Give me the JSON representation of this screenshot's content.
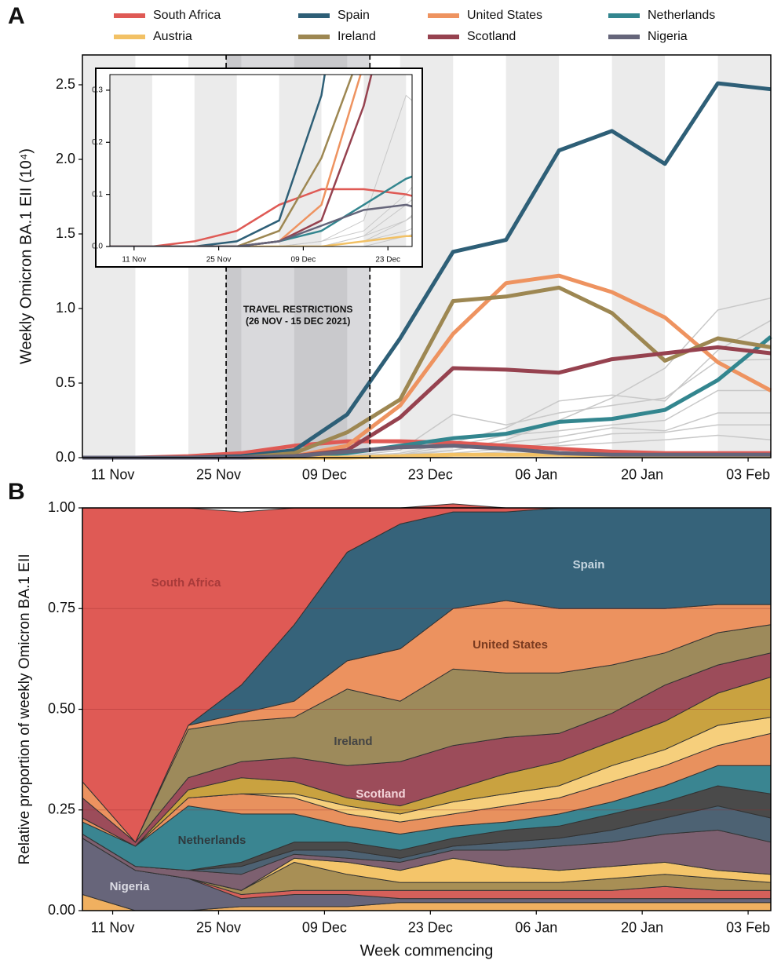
{
  "chart_data": [
    {
      "type": "line",
      "panel": "A",
      "x": [
        "07 Nov",
        "14 Nov",
        "21 Nov",
        "28 Nov",
        "05 Dec",
        "12 Dec",
        "19 Dec",
        "26 Dec",
        "02 Jan",
        "09 Jan",
        "16 Jan",
        "23 Jan",
        "30 Jan",
        "06 Feb"
      ],
      "xlim": [
        "07 Nov",
        "06 Feb"
      ],
      "xticks": [
        "11 Nov",
        "25 Nov",
        "09 Dec",
        "23 Dec",
        "06 Jan",
        "20 Jan",
        "03 Feb"
      ],
      "ylim": [
        0,
        2.7
      ],
      "yticks": [
        {
          "value": 0,
          "label": "0.0"
        },
        0.5,
        {
          "value": 1,
          "label": "1.0"
        },
        1.5,
        {
          "value": 2,
          "label": "2.0"
        },
        2.5
      ],
      "y_label": "Weekly Omicron BA.1 EII (10⁴)",
      "series": [
        {
          "name": "South Africa",
          "color": "#df5a55",
          "values": [
            0,
            0,
            0.01,
            0.03,
            0.08,
            0.11,
            0.11,
            0.1,
            0.08,
            0.06,
            0.04,
            0.03,
            0.03,
            0.03
          ]
        },
        {
          "name": "Spain",
          "color": "#2e5f77",
          "values": [
            0,
            0,
            0,
            0.01,
            0.05,
            0.29,
            0.8,
            1.38,
            1.46,
            2.06,
            2.19,
            1.97,
            2.51,
            2.47
          ]
        },
        {
          "name": "United States",
          "color": "#ee9360",
          "values": [
            0,
            0,
            0,
            0,
            0.01,
            0.08,
            0.35,
            0.83,
            1.17,
            1.22,
            1.11,
            0.94,
            0.64,
            0.45
          ]
        },
        {
          "name": "Netherlands",
          "color": "#33868f",
          "values": [
            0,
            0,
            0,
            0,
            0.01,
            0.03,
            0.08,
            0.13,
            0.16,
            0.24,
            0.26,
            0.32,
            0.52,
            0.81
          ]
        },
        {
          "name": "Austria",
          "color": "#f2c165",
          "values": [
            0,
            0,
            0,
            0,
            0,
            0,
            0.01,
            0.02,
            0.02,
            0.02,
            0.01,
            0.01,
            0.01,
            0.01
          ]
        },
        {
          "name": "Ireland",
          "color": "#9d8752",
          "values": [
            0,
            0,
            0,
            0,
            0.03,
            0.17,
            0.39,
            1.05,
            1.08,
            1.14,
            0.97,
            0.65,
            0.8,
            0.74
          ]
        },
        {
          "name": "Scotland",
          "color": "#96424f",
          "values": [
            0,
            0,
            0,
            0,
            0.01,
            0.05,
            0.27,
            0.6,
            0.59,
            0.57,
            0.66,
            0.7,
            0.74,
            0.7
          ]
        },
        {
          "name": "Nigeria",
          "color": "#65657a",
          "values": [
            0,
            0,
            0,
            0,
            0.01,
            0.04,
            0.07,
            0.08,
            0.06,
            0.03,
            0.02,
            0.02,
            0.02,
            0.02
          ]
        }
      ],
      "background_series": [
        {
          "color": "#c8c8c8",
          "values": [
            0,
            0,
            0,
            0,
            0,
            0,
            0.02,
            0.05,
            0.12,
            0.25,
            0.4,
            0.6,
            0.99,
            1.07
          ]
        },
        {
          "color": "#c8c8c8",
          "values": [
            0,
            0,
            0,
            0,
            0,
            0.01,
            0.03,
            0.1,
            0.2,
            0.38,
            0.42,
            0.38,
            0.72,
            0.92
          ]
        },
        {
          "color": "#c8c8c8",
          "values": [
            0,
            0,
            0,
            0,
            0,
            0.01,
            0.05,
            0.29,
            0.22,
            0.3,
            0.35,
            0.4,
            0.65,
            0.66
          ]
        },
        {
          "color": "#c8c8c8",
          "values": [
            0,
            0,
            0,
            0,
            0,
            0,
            0.02,
            0.08,
            0.15,
            0.18,
            0.22,
            0.25,
            0.45,
            0.45
          ]
        },
        {
          "color": "#c8c8c8",
          "values": [
            0,
            0,
            0,
            0,
            0,
            0,
            0.01,
            0.05,
            0.1,
            0.14,
            0.2,
            0.18,
            0.3,
            0.3
          ]
        },
        {
          "color": "#c8c8c8",
          "values": [
            0,
            0,
            0,
            0,
            0,
            0,
            0.01,
            0.03,
            0.06,
            0.1,
            0.16,
            0.17,
            0.22,
            0.22
          ]
        },
        {
          "color": "#c8c8c8",
          "values": [
            0,
            0,
            0,
            0,
            0,
            0,
            0,
            0.02,
            0.04,
            0.08,
            0.1,
            0.12,
            0.15,
            0.12
          ]
        }
      ],
      "annotation": {
        "x": [
          "26 Nov",
          "15 Dec"
        ],
        "lines": [
          "TRAVEL RESTRICTIONS",
          "(26 NOV - 15 DEC 2021)"
        ]
      },
      "inset": {
        "xlim": [
          "07 Nov",
          "27 Dec"
        ],
        "ylim": [
          0,
          0.33
        ],
        "xticks": [
          "11 Nov",
          "25 Nov",
          "09 Dec",
          "23 Dec"
        ],
        "yticks": [
          {
            "value": 0,
            "label": "0.0"
          },
          0.1,
          0.2,
          0.3
        ]
      }
    },
    {
      "type": "stacked_area",
      "panel": "B",
      "x": [
        "07 Nov",
        "14 Nov",
        "21 Nov",
        "28 Nov",
        "05 Dec",
        "12 Dec",
        "19 Dec",
        "26 Dec",
        "02 Jan",
        "09 Jan",
        "16 Jan",
        "23 Jan",
        "30 Jan",
        "06 Feb"
      ],
      "xlim": [
        "07 Nov",
        "06 Feb"
      ],
      "xticks": [
        "11 Nov",
        "25 Nov",
        "09 Dec",
        "23 Dec",
        "06 Jan",
        "20 Jan",
        "03 Feb"
      ],
      "ylim": [
        0,
        1
      ],
      "yticks": [
        {
          "value": 0,
          "label": "0.00"
        },
        0.25,
        {
          "value": 0.5,
          "label": "0.50"
        },
        0.75,
        {
          "value": 1,
          "label": "1.00"
        }
      ],
      "x_label": "Week commencing",
      "y_label": "Relative proportion of weekly Omicron BA.1 EII",
      "series": [
        {
          "color": "#f0b060",
          "values": [
            0.04,
            0,
            0,
            0.01,
            0.01,
            0.01,
            0.02,
            0.02,
            0.02,
            0.02,
            0.02,
            0.02,
            0.02,
            0.02
          ]
        },
        {
          "name": "Nigeria",
          "color": "#67657a",
          "values": [
            0.14,
            0.1,
            0.08,
            0.02,
            0.03,
            0.03,
            0.01,
            0.01,
            0.01,
            0.01,
            0.01,
            0.01,
            0.01,
            0.01
          ]
        },
        {
          "color": "#d5605a",
          "values": [
            0,
            0,
            0,
            0.01,
            0.01,
            0.01,
            0.02,
            0.02,
            0.02,
            0.02,
            0.02,
            0.03,
            0.02,
            0.02
          ]
        },
        {
          "color": "#a88f55",
          "values": [
            0,
            0,
            0,
            0.01,
            0.07,
            0.04,
            0.02,
            0.02,
            0.02,
            0.02,
            0.03,
            0.03,
            0.03,
            0.02
          ]
        },
        {
          "color": "#f4c56a",
          "values": [
            0,
            0,
            0,
            0,
            0.01,
            0.03,
            0.03,
            0.06,
            0.04,
            0.03,
            0.03,
            0.03,
            0.02,
            0.02
          ]
        },
        {
          "color": "#7d6070",
          "values": [
            0.01,
            0.01,
            0.02,
            0.04,
            0.01,
            0.01,
            0.02,
            0.02,
            0.04,
            0.06,
            0.06,
            0.07,
            0.1,
            0.08
          ]
        },
        {
          "color": "#4d6273",
          "values": [
            0,
            0,
            0,
            0.02,
            0.01,
            0.02,
            0.01,
            0.01,
            0.02,
            0.02,
            0.03,
            0.04,
            0.06,
            0.06
          ]
        },
        {
          "color": "#4a4a4a",
          "values": [
            0,
            0,
            0,
            0.01,
            0.02,
            0.02,
            0.02,
            0.02,
            0.03,
            0.03,
            0.04,
            0.04,
            0.05,
            0.06
          ]
        },
        {
          "name": "Netherlands",
          "color": "#3a8591",
          "values": [
            0.03,
            0.05,
            0.16,
            0.12,
            0.07,
            0.04,
            0.04,
            0.03,
            0.02,
            0.03,
            0.03,
            0.04,
            0.05,
            0.07
          ]
        },
        {
          "color": "#e8915e",
          "values": [
            0.01,
            0,
            0.02,
            0.05,
            0.04,
            0.03,
            0.03,
            0.03,
            0.04,
            0.04,
            0.05,
            0.05,
            0.05,
            0.08
          ]
        },
        {
          "color": "#f6cf7c",
          "values": [
            0,
            0,
            0,
            0,
            0.01,
            0.02,
            0.02,
            0.03,
            0.03,
            0.03,
            0.04,
            0.04,
            0.05,
            0.04
          ]
        },
        {
          "color": "#c9a240",
          "values": [
            0,
            0,
            0.02,
            0.04,
            0.03,
            0.02,
            0.02,
            0.03,
            0.05,
            0.06,
            0.06,
            0.07,
            0.08,
            0.1
          ]
        },
        {
          "name": "Scotland",
          "color": "#9c4c5a",
          "values": [
            0.05,
            0.01,
            0.03,
            0.04,
            0.06,
            0.08,
            0.11,
            0.11,
            0.09,
            0.07,
            0.07,
            0.09,
            0.07,
            0.06
          ]
        },
        {
          "name": "Ireland",
          "color": "#9d8a5b",
          "values": [
            0,
            0,
            0.12,
            0.1,
            0.1,
            0.19,
            0.15,
            0.19,
            0.16,
            0.15,
            0.12,
            0.08,
            0.08,
            0.07
          ]
        },
        {
          "name": "United States",
          "color": "#ec925f",
          "values": [
            0.04,
            0,
            0.01,
            0.02,
            0.04,
            0.07,
            0.13,
            0.15,
            0.18,
            0.16,
            0.14,
            0.11,
            0.07,
            0.05
          ]
        },
        {
          "name": "Spain",
          "color": "#36637a",
          "values": [
            0,
            0,
            0,
            0.07,
            0.19,
            0.27,
            0.31,
            0.24,
            0.22,
            0.25,
            0.25,
            0.25,
            0.24,
            0.24
          ]
        },
        {
          "name": "South Africa",
          "color": "#df5a55",
          "values": [
            0.68,
            0.83,
            0.54,
            0.43,
            0.29,
            0.11,
            0.04,
            0.02,
            0.01,
            0,
            0,
            0,
            0,
            0
          ]
        }
      ]
    }
  ]
}
